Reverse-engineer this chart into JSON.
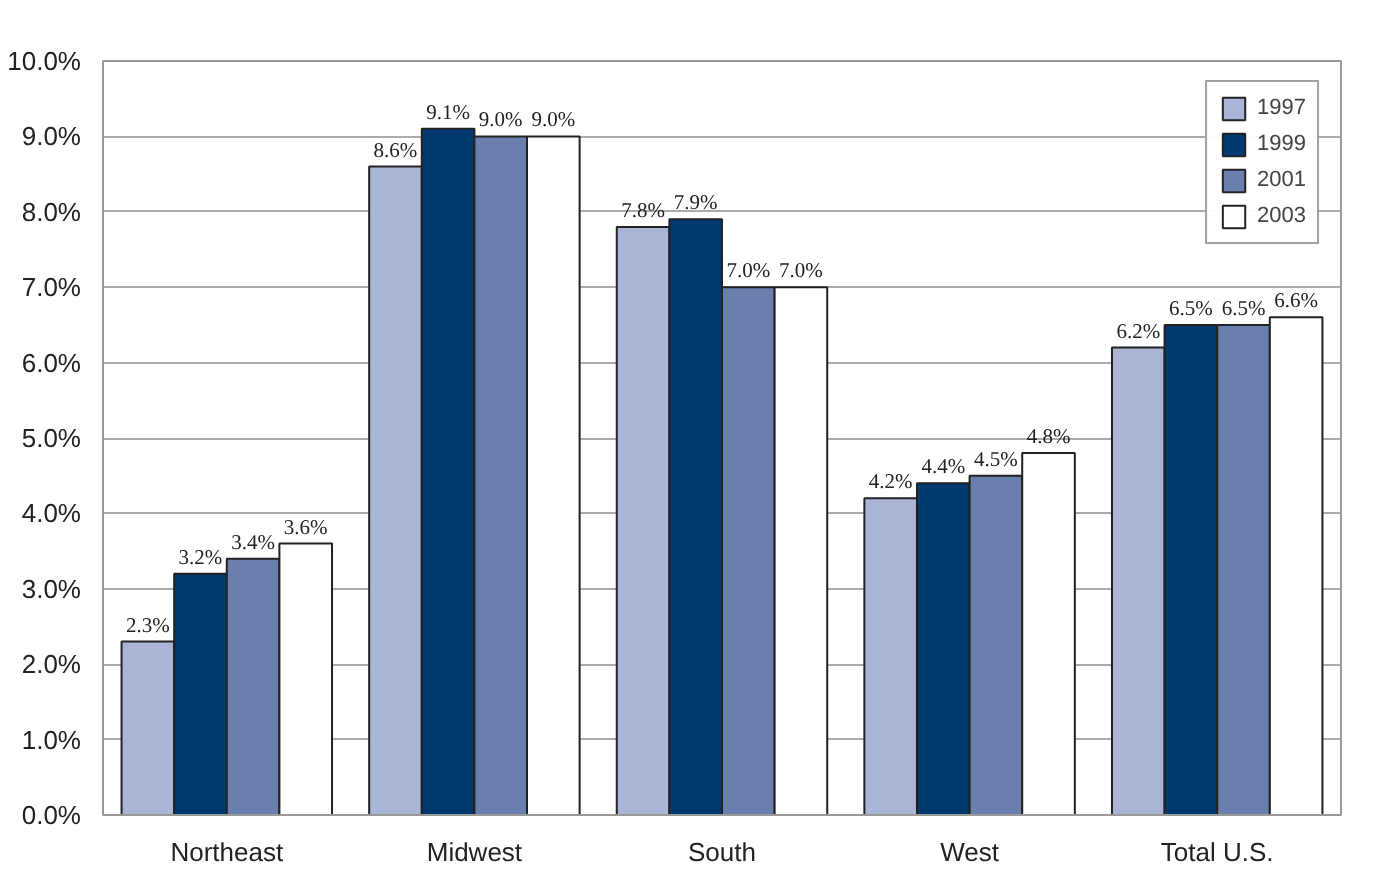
{
  "chart_data": {
    "type": "bar",
    "categories": [
      "Northeast",
      "Midwest",
      "South",
      "West",
      "Total U.S."
    ],
    "series": [
      {
        "name": "1997",
        "color": "#aab4d6",
        "values": [
          2.3,
          8.6,
          7.8,
          4.2,
          6.2
        ],
        "value_labels": [
          "2.3%",
          "8.6%",
          "7.8%",
          "4.2%",
          "6.2%"
        ]
      },
      {
        "name": "1999",
        "color": "#003a70",
        "values": [
          3.2,
          9.1,
          7.9,
          4.4,
          6.5
        ],
        "value_labels": [
          "3.2%",
          "9.1%",
          "7.9%",
          "4.4%",
          "6.5%"
        ]
      },
      {
        "name": "2001",
        "color": "#6b7fad",
        "values": [
          3.4,
          9.0,
          7.0,
          4.5,
          6.5
        ],
        "value_labels": [
          "3.4%",
          "9.0%",
          "7.0%",
          "4.5%",
          "6.5%"
        ]
      },
      {
        "name": "2003",
        "color": "#ffffff",
        "values": [
          3.6,
          9.0,
          7.0,
          4.8,
          6.6
        ],
        "value_labels": [
          "3.6%",
          "9.0%",
          "7.0%",
          "4.8%",
          "6.6%"
        ]
      }
    ],
    "ylim": [
      0,
      10
    ],
    "yticks": [
      {
        "value": 0,
        "label": "0.0%"
      },
      {
        "value": 1,
        "label": "1.0%"
      },
      {
        "value": 2,
        "label": "2.0%"
      },
      {
        "value": 3,
        "label": "3.0%"
      },
      {
        "value": 4,
        "label": "4.0%"
      },
      {
        "value": 5,
        "label": "5.0%"
      },
      {
        "value": 6,
        "label": "6.0%"
      },
      {
        "value": 7,
        "label": "7.0%"
      },
      {
        "value": 8,
        "label": "8.0%"
      },
      {
        "value": 9,
        "label": "9.0%"
      },
      {
        "value": 10,
        "label": "10.0%"
      }
    ],
    "grid": "y",
    "legend": "top right"
  }
}
